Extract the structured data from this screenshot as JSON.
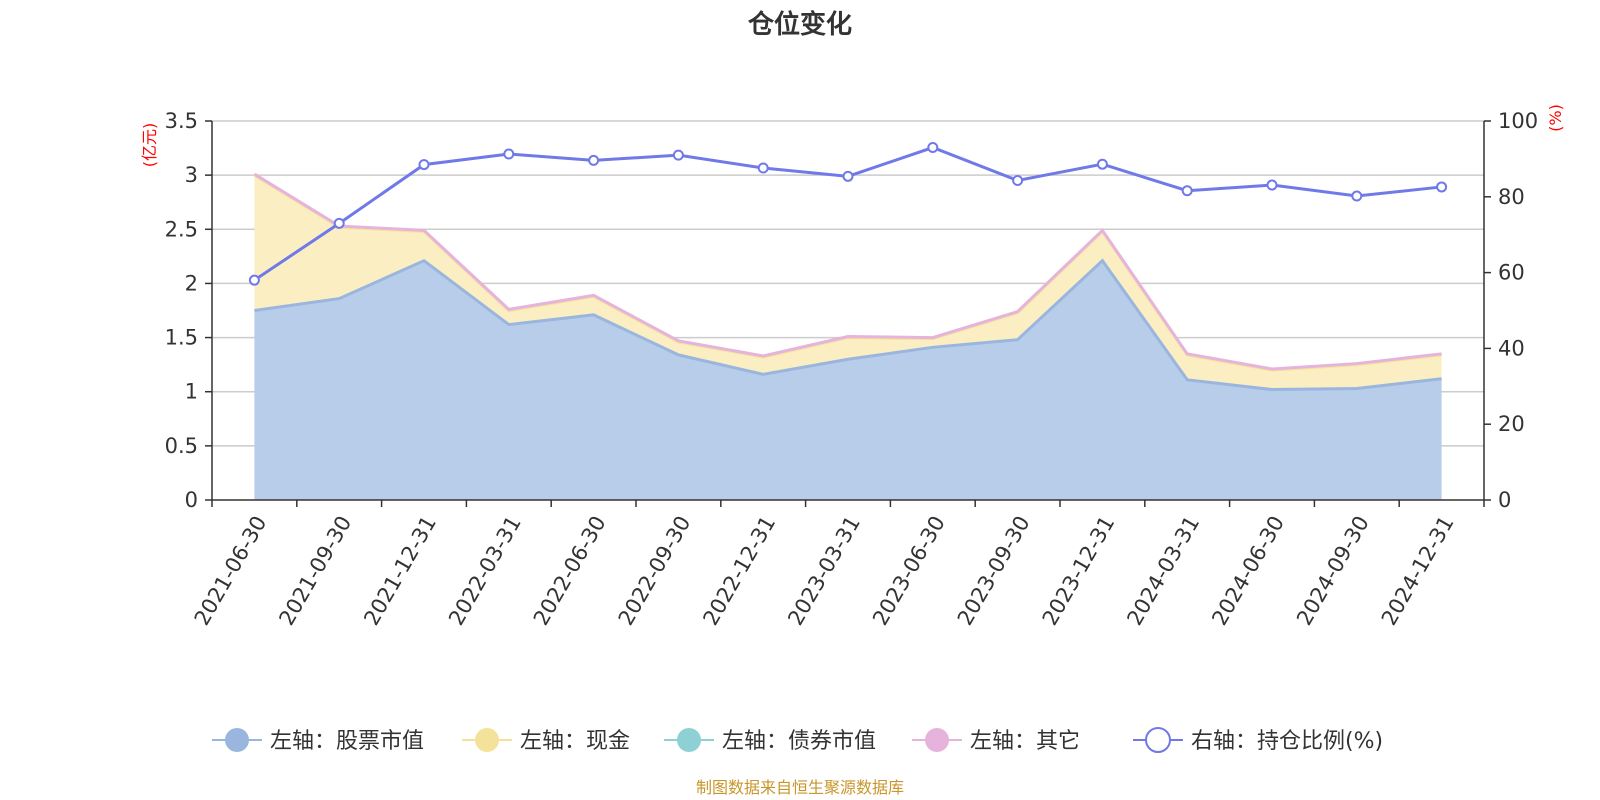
{
  "chart_data": {
    "type": "area",
    "title": "仓位变化",
    "source": "制图数据来自恒生聚源数据库",
    "left_axis": {
      "unit": "(亿元)",
      "min": 0,
      "max": 3.5,
      "ticks": [
        "0",
        "0.5",
        "1",
        "1.5",
        "2",
        "2.5",
        "3",
        "3.5"
      ]
    },
    "right_axis": {
      "unit": "(%)",
      "min": 0,
      "max": 100,
      "ticks": [
        "0",
        "20",
        "40",
        "60",
        "80",
        "100"
      ]
    },
    "categories": [
      "2021-06-30",
      "2021-09-30",
      "2021-12-31",
      "2022-03-31",
      "2022-06-30",
      "2022-09-30",
      "2022-12-31",
      "2023-03-31",
      "2023-06-30",
      "2023-09-30",
      "2023-12-31",
      "2024-03-31",
      "2024-06-30",
      "2024-09-30",
      "2024-12-31"
    ],
    "series": [
      {
        "name": "左轴：股票市值",
        "axis": "left",
        "stack": true,
        "color": "#9ab6de",
        "fill": "#b8cdea",
        "values": [
          1.75,
          1.86,
          2.21,
          1.62,
          1.71,
          1.34,
          1.16,
          1.3,
          1.41,
          1.48,
          2.21,
          1.11,
          1.02,
          1.03,
          1.12
        ]
      },
      {
        "name": "左轴：现金",
        "axis": "left",
        "stack": true,
        "color": "#f5e29a",
        "fill": "#faeec2",
        "values": [
          1.25,
          0.66,
          0.27,
          0.13,
          0.17,
          0.12,
          0.16,
          0.2,
          0.08,
          0.25,
          0.27,
          0.23,
          0.18,
          0.22,
          0.22
        ]
      },
      {
        "name": "左轴：债券市值",
        "axis": "left",
        "stack": true,
        "color": "#8fd0d4",
        "fill": "#8fd0d4",
        "values": [
          0,
          0,
          0,
          0,
          0,
          0,
          0,
          0,
          0,
          0,
          0,
          0,
          0,
          0,
          0
        ]
      },
      {
        "name": "左轴：其它",
        "axis": "left",
        "stack": true,
        "color": "#e6b3dc",
        "fill": "#e6b3dc",
        "values": [
          0.01,
          0.01,
          0.01,
          0.01,
          0.01,
          0.01,
          0.01,
          0.01,
          0.01,
          0.01,
          0.01,
          0.01,
          0.01,
          0.01,
          0.01
        ]
      },
      {
        "name": "右轴：持仓比例(%)",
        "axis": "right",
        "stack": false,
        "color": "#7079e8",
        "values": [
          58.0,
          73.0,
          88.5,
          91.3,
          89.6,
          91.0,
          87.6,
          85.4,
          93.0,
          84.3,
          88.6,
          81.6,
          83.1,
          80.2,
          82.6
        ]
      }
    ]
  }
}
